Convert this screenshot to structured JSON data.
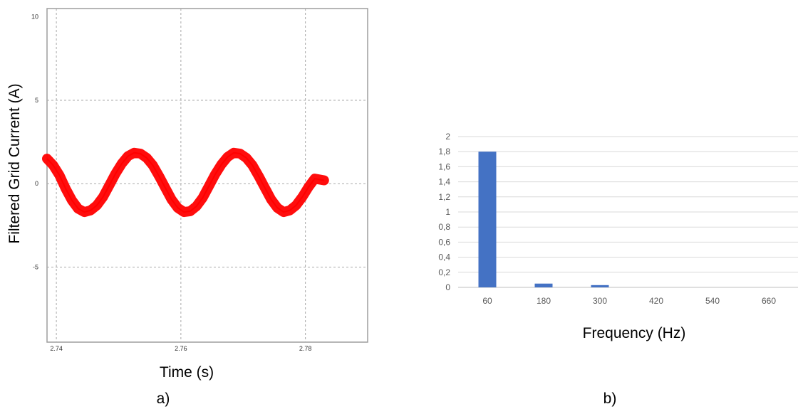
{
  "chart_data": [
    {
      "type": "line",
      "ylabel": "Filtered Grid Current (A)",
      "xlabel": "Time (s)",
      "panel_label": "a)",
      "xlim": [
        2.7385,
        2.79
      ],
      "ylim": [
        -9.5,
        10.5
      ],
      "x_ticks": [
        2.74,
        2.76,
        2.78
      ],
      "x_tick_labels": [
        "2.74",
        "2.76",
        "2.78"
      ],
      "y_ticks": [
        10,
        5,
        0,
        -5
      ],
      "y_tick_labels": [
        "10",
        "5",
        "0",
        "-5"
      ],
      "grid": true,
      "series": [
        {
          "color": "#ff0000",
          "x": [
            2.7385,
            2.7395,
            2.7405,
            2.7415,
            2.7425,
            2.7435,
            2.7445,
            2.7455,
            2.7465,
            2.7475,
            2.7485,
            2.7495,
            2.7505,
            2.7515,
            2.7525,
            2.7535,
            2.7545,
            2.7555,
            2.7565,
            2.7575,
            2.7585,
            2.7595,
            2.7605,
            2.7615,
            2.7625,
            2.7635,
            2.7645,
            2.7655,
            2.7665,
            2.7675,
            2.7685,
            2.7695,
            2.7705,
            2.7715,
            2.7725,
            2.7735,
            2.7745,
            2.7755,
            2.7765,
            2.7775,
            2.7785,
            2.7795,
            2.7805,
            2.7815,
            2.783
          ],
          "y": [
            1.5,
            1.1,
            0.5,
            -0.3,
            -1.0,
            -1.5,
            -1.7,
            -1.6,
            -1.3,
            -0.8,
            -0.1,
            0.6,
            1.2,
            1.65,
            1.85,
            1.8,
            1.55,
            1.1,
            0.45,
            -0.25,
            -0.95,
            -1.45,
            -1.7,
            -1.65,
            -1.35,
            -0.85,
            -0.15,
            0.55,
            1.15,
            1.6,
            1.85,
            1.8,
            1.55,
            1.1,
            0.45,
            -0.25,
            -0.95,
            -1.45,
            -1.7,
            -1.6,
            -1.3,
            -0.8,
            -0.2,
            0.3,
            0.2
          ]
        }
      ]
    },
    {
      "type": "bar",
      "xlabel": "Frequency (Hz)",
      "panel_label": "b)",
      "categories": [
        "60",
        "180",
        "300",
        "420",
        "540",
        "660"
      ],
      "values": [
        1.8,
        0.05,
        0.03,
        0,
        0,
        0
      ],
      "ylim": [
        0,
        2
      ],
      "y_ticks": [
        0,
        0.2,
        0.4,
        0.6,
        0.8,
        1,
        1.2,
        1.4,
        1.6,
        1.8,
        2
      ],
      "y_tick_labels": [
        "0",
        "0,2",
        "0,4",
        "0,6",
        "0,8",
        "1",
        "1,2",
        "1,4",
        "1,6",
        "1,8",
        "2"
      ],
      "bar_color": "#4472c4",
      "grid": true
    }
  ]
}
